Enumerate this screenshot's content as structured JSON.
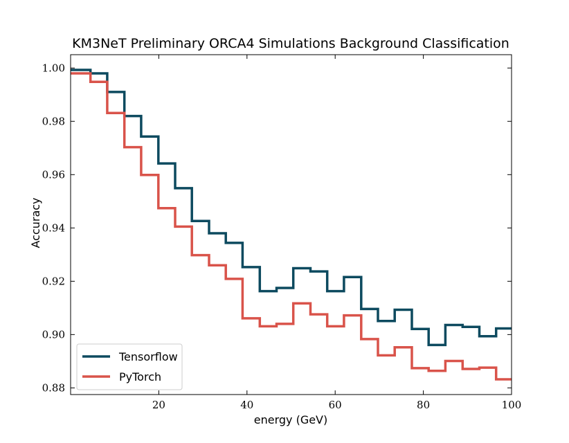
{
  "chart_data": {
    "type": "line",
    "step": true,
    "title": "KM3NeT Preliminary ORCA4 Simulations Background Classification",
    "xlabel": "energy (GeV)",
    "ylabel": "Accuracy",
    "xlim": [
      0,
      100
    ],
    "ylim": [
      0.8775,
      1.005
    ],
    "xticks": [
      20,
      40,
      60,
      80,
      100
    ],
    "xtick_labels": [
      "20",
      "40",
      "60",
      "80",
      "100"
    ],
    "yticks": [
      0.88,
      0.9,
      0.92,
      0.94,
      0.96,
      0.98,
      1.0
    ],
    "ytick_labels": [
      "0.88",
      "0.90",
      "0.92",
      "0.94",
      "0.96",
      "0.98",
      "1.00"
    ],
    "grid": false,
    "legend_position": "lower-left",
    "bin_edges": [
      0,
      4.5,
      8.3,
      12.2,
      16.0,
      19.9,
      23.7,
      27.5,
      31.4,
      35.2,
      39.0,
      42.9,
      46.7,
      50.5,
      54.4,
      58.2,
      62.0,
      65.9,
      69.7,
      73.5,
      77.4,
      81.2,
      85.0,
      88.9,
      92.7,
      96.5,
      100
    ],
    "series": [
      {
        "name": "Tensorflow",
        "color": "#0d4a5f",
        "values": [
          0.9993,
          0.998,
          0.991,
          0.982,
          0.9743,
          0.9642,
          0.9549,
          0.9426,
          0.938,
          0.9344,
          0.9253,
          0.9163,
          0.9175,
          0.9249,
          0.9237,
          0.9163,
          0.9216,
          0.9096,
          0.9051,
          0.9093,
          0.9021,
          0.8961,
          0.9036,
          0.9029,
          0.8994,
          0.9023
        ]
      },
      {
        "name": "PyTorch",
        "color": "#d9534a",
        "values": [
          0.998,
          0.9948,
          0.9831,
          0.9703,
          0.9599,
          0.9474,
          0.9405,
          0.9298,
          0.926,
          0.9209,
          0.9061,
          0.9031,
          0.904,
          0.9117,
          0.9076,
          0.9031,
          0.9072,
          0.8983,
          0.8922,
          0.8952,
          0.8874,
          0.8864,
          0.8901,
          0.8871,
          0.8876,
          0.8832
        ]
      }
    ]
  }
}
